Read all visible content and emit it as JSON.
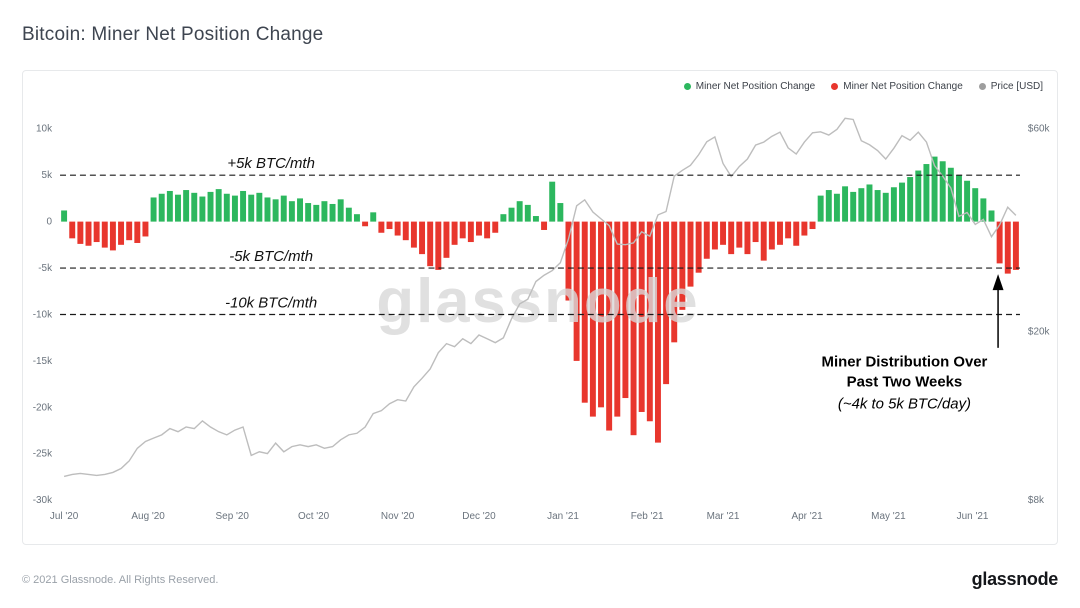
{
  "title": "Bitcoin: Miner Net Position Change",
  "legend": {
    "items": [
      {
        "label": "Miner Net Position Change",
        "color": "#2cb75e"
      },
      {
        "label": "Miner Net Position Change",
        "color": "#e8362d"
      },
      {
        "label": "Price [USD]",
        "color": "#9e9e9e"
      }
    ]
  },
  "footer": {
    "copyright": "© 2021 Glassnode. All Rights Reserved.",
    "brand": "glassnode"
  },
  "chart_data": {
    "type": "bar+line",
    "title": "Bitcoin: Miner Net Position Change",
    "x_start": "Jul 2020",
    "x_end": "Jun 2021",
    "x_resolution_days": 3,
    "bar_series": {
      "name": "Miner Net Position Change",
      "unit": "BTC/mth",
      "positive_color": "#2cb75e",
      "negative_color": "#e8362d",
      "values": [
        1200,
        -1800,
        -2400,
        -2600,
        -2200,
        -2800,
        -3100,
        -2500,
        -2000,
        -2300,
        -1600,
        2600,
        3000,
        3300,
        2900,
        3400,
        3100,
        2700,
        3200,
        3500,
        3000,
        2800,
        3300,
        2900,
        3100,
        2600,
        2400,
        2800,
        2200,
        2500,
        2000,
        1800,
        2200,
        1900,
        2400,
        1500,
        800,
        -500,
        1000,
        -1200,
        -800,
        -1500,
        -2000,
        -2800,
        -3500,
        -4800,
        -5200,
        -3900,
        -2500,
        -1800,
        -2200,
        -1500,
        -1800,
        -1200,
        800,
        1500,
        2200,
        1800,
        600,
        -900,
        4300,
        2000,
        -8500,
        -15000,
        -19500,
        -21000,
        -20000,
        -22500,
        -21000,
        -19000,
        -23000,
        -20500,
        -21500,
        -23800,
        -17500,
        -13000,
        -9500,
        -7000,
        -5500,
        -4000,
        -3000,
        -2500,
        -3500,
        -2800,
        -3500,
        -2200,
        -4200,
        -3000,
        -2500,
        -1800,
        -2600,
        -1500,
        -800,
        2800,
        3400,
        3000,
        3800,
        3200,
        3600,
        4000,
        3400,
        3100,
        3700,
        4200,
        4800,
        5500,
        6200,
        7000,
        6500,
        5800,
        5000,
        4400,
        3600,
        2500,
        1200,
        -4500,
        -5600,
        -5200
      ]
    },
    "price_series": {
      "name": "Price [USD]",
      "color": "#bdbdbd",
      "scale": "log",
      "values": [
        9100,
        9200,
        9250,
        9200,
        9150,
        9200,
        9300,
        9500,
        9900,
        10600,
        11000,
        11200,
        11400,
        11800,
        11600,
        11900,
        11800,
        12300,
        11900,
        11600,
        11400,
        11700,
        11900,
        10200,
        10400,
        10300,
        10900,
        10400,
        10700,
        10800,
        10700,
        10800,
        10600,
        10700,
        11100,
        11400,
        11500,
        11900,
        12800,
        13000,
        13500,
        13800,
        13700,
        14800,
        15500,
        16300,
        17800,
        18700,
        18400,
        19200,
        18700,
        19600,
        19200,
        18800,
        19300,
        21400,
        23200,
        23800,
        26200,
        27100,
        27800,
        29000,
        33000,
        39500,
        40800,
        38200,
        36800,
        35500,
        32100,
        32000,
        32300,
        34300,
        33500,
        37600,
        38300,
        46400,
        47900,
        49200,
        52100,
        55900,
        57400,
        49700,
        46300,
        48900,
        50900,
        54900,
        55800,
        57600,
        58900,
        54100,
        52300,
        55800,
        58700,
        59000,
        58000,
        59800,
        63500,
        63100,
        56200,
        55000,
        53300,
        50900,
        54000,
        57800,
        56400,
        58900,
        55800,
        49100,
        46400,
        43500,
        37300,
        38100,
        35700,
        36700,
        33400,
        35600,
        39200,
        37500
      ]
    },
    "x_ticks": [
      {
        "label": "Jul '20",
        "i": 0
      },
      {
        "label": "Aug '20",
        "i": 10.33
      },
      {
        "label": "Sep '20",
        "i": 20.67
      },
      {
        "label": "Oct '20",
        "i": 30.67
      },
      {
        "label": "Nov '20",
        "i": 41
      },
      {
        "label": "Dec '20",
        "i": 51
      },
      {
        "label": "Jan '21",
        "i": 61.33
      },
      {
        "label": "Feb '21",
        "i": 71.67
      },
      {
        "label": "Mar '21",
        "i": 81
      },
      {
        "label": "Apr '21",
        "i": 91.33
      },
      {
        "label": "May '21",
        "i": 101.33
      },
      {
        "label": "Jun '21",
        "i": 111.67
      }
    ],
    "left_axis": {
      "min": -30000,
      "max": 10000,
      "ticks": [
        {
          "v": 10000,
          "label": "10k"
        },
        {
          "v": 5000,
          "label": "5k"
        },
        {
          "v": 0,
          "label": "0"
        },
        {
          "v": -5000,
          "label": "-5k"
        },
        {
          "v": -10000,
          "label": "-10k"
        },
        {
          "v": -15000,
          "label": "-15k"
        },
        {
          "v": -20000,
          "label": "-20k"
        },
        {
          "v": -25000,
          "label": "-25k"
        },
        {
          "v": -30000,
          "label": "-30k"
        }
      ]
    },
    "right_axis": {
      "min": 8000,
      "max": 60000,
      "scale": "log",
      "ticks": [
        {
          "v": 60000,
          "label": "$60k"
        },
        {
          "v": 20000,
          "label": "$20k"
        },
        {
          "v": 8000,
          "label": "$8k"
        }
      ]
    },
    "reference_lines": [
      {
        "value": 5000,
        "label": "+5k BTC/mth"
      },
      {
        "value": -5000,
        "label": "-5k BTC/mth"
      },
      {
        "value": -10000,
        "label": "-10k BTC/mth"
      }
    ],
    "watermark": "glassnode",
    "annotation": {
      "title_line1": "Miner Distribution Over",
      "title_line2": "Past Two Weeks",
      "subtitle": "(~4k to 5k BTC/day)"
    }
  }
}
